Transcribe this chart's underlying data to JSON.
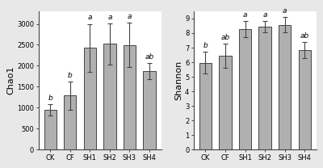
{
  "categories": [
    "CK",
    "CF",
    "SH1",
    "SH2",
    "SH3",
    "SH4"
  ],
  "chao1_values": [
    950,
    1290,
    2430,
    2520,
    2490,
    1870
  ],
  "chao1_errors": [
    140,
    340,
    570,
    490,
    530,
    190
  ],
  "chao1_labels": [
    "b",
    "b",
    "a",
    "a",
    "a",
    "ab"
  ],
  "chao1_ylabel": "Chao1",
  "chao1_ylim": [
    0,
    3300
  ],
  "chao1_yticks": [
    0,
    500,
    1000,
    1500,
    2000,
    2500,
    3000
  ],
  "shannon_values": [
    5.95,
    6.45,
    8.3,
    8.45,
    8.58,
    6.85
  ],
  "shannon_errors": [
    0.75,
    0.85,
    0.55,
    0.4,
    0.55,
    0.55
  ],
  "shannon_labels": [
    "b",
    "ab",
    "a",
    "a",
    "a",
    "ab"
  ],
  "shannon_ylabel": "Shannon",
  "shannon_ylim": [
    0,
    9.5
  ],
  "shannon_yticks": [
    0,
    1,
    2,
    3,
    4,
    5,
    6,
    7,
    8,
    9
  ],
  "bar_color": "#b0b0b0",
  "bar_edgecolor": "#444444",
  "bar_linewidth": 0.7,
  "error_capsize": 2.5,
  "error_linewidth": 0.8,
  "error_color": "#444444",
  "sig_label_fontsize": 6.5,
  "tick_fontsize": 6,
  "ylabel_fontsize": 8,
  "xlabel_fontsize": 6,
  "background_color": "#ffffff",
  "figure_facecolor": "#e8e8e8"
}
